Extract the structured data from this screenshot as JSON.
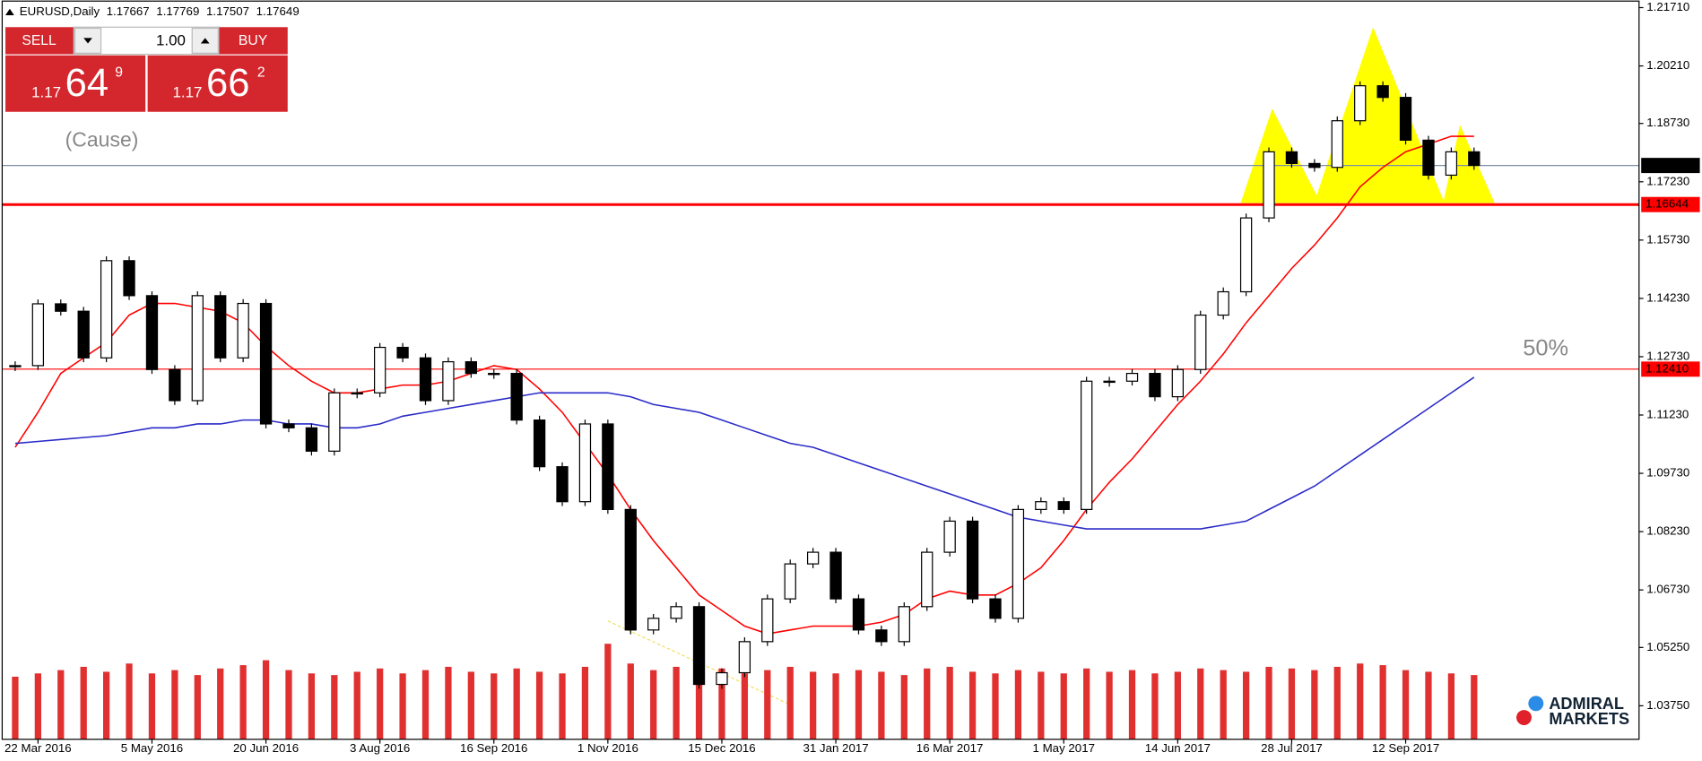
{
  "header": {
    "symbol": "EURUSD,Daily",
    "prices": [
      1.17667,
      1.17769,
      1.17507,
      1.17649
    ]
  },
  "trade_panel": {
    "sell_label": "SELL",
    "buy_label": "BUY",
    "lot": "1.00",
    "sell": {
      "prefix": "1.17",
      "pips": "64",
      "fraction": "9"
    },
    "buy": {
      "prefix": "1.17",
      "pips": "66",
      "fraction": "2"
    }
  },
  "annotations": {
    "cause": "(Cause)",
    "fifty": "50%"
  },
  "logo": {
    "line1": "ADMIRAL",
    "line2": "MARKETS"
  },
  "chart_data": {
    "type": "candlestick",
    "ylim": [
      1.02888,
      1.21906
    ],
    "yticks": [
      {
        "value": 1.2171,
        "label": "1.21710"
      },
      {
        "value": 1.2021,
        "label": "1.20210"
      },
      {
        "value": 1.1873,
        "label": "1.18730"
      },
      {
        "value": 1.1723,
        "label": "1.17230"
      },
      {
        "value": 1.1573,
        "label": "1.15730"
      },
      {
        "value": 1.1423,
        "label": "1.14230"
      },
      {
        "value": 1.1273,
        "label": "1.12730"
      },
      {
        "value": 1.1123,
        "label": "1.11230"
      },
      {
        "value": 1.0973,
        "label": "1.09730"
      },
      {
        "value": 1.0823,
        "label": "1.08230"
      },
      {
        "value": 1.0673,
        "label": "1.06730"
      },
      {
        "value": 1.0525,
        "label": "1.05250"
      },
      {
        "value": 1.0375,
        "label": "1.03750"
      }
    ],
    "categories": [
      null,
      "22 Mar 2016",
      null,
      null,
      null,
      null,
      "5 May 2016",
      null,
      null,
      null,
      null,
      "20 Jun 2016",
      null,
      null,
      null,
      null,
      "3 Aug 2016",
      null,
      null,
      null,
      null,
      "16 Sep 2016",
      null,
      null,
      null,
      null,
      "1 Nov 2016",
      null,
      null,
      null,
      null,
      "15 Dec 2016",
      null,
      null,
      null,
      null,
      "31 Jan 2017",
      null,
      null,
      null,
      null,
      "16 Mar 2017",
      null,
      null,
      null,
      null,
      "1 May 2017",
      null,
      null,
      null,
      null,
      "14 Jun 2017",
      null,
      null,
      null,
      null,
      "28 Jul 2017",
      null,
      null,
      null,
      null,
      "12 Sep 2017",
      null,
      null,
      null
    ],
    "values": [
      1.125,
      1.1409,
      1.139,
      1.127,
      1.152,
      1.143,
      1.124,
      1.116,
      1.143,
      1.127,
      1.141,
      1.11,
      1.109,
      1.103,
      1.118,
      1.118,
      1.1297,
      1.127,
      1.116,
      1.126,
      1.123,
      1.123,
      1.111,
      1.099,
      1.09,
      1.11,
      1.088,
      1.057,
      1.06,
      1.063,
      1.043,
      1.046,
      1.054,
      1.065,
      1.074,
      1.077,
      1.065,
      1.057,
      1.054,
      1.063,
      1.077,
      1.085,
      1.065,
      1.06,
      1.088,
      1.09,
      1.088,
      1.121,
      1.121,
      1.123,
      1.117,
      1.124,
      1.138,
      1.144,
      1.163,
      1.18,
      1.177,
      1.176,
      1.188,
      1.197,
      1.194,
      1.183,
      1.174,
      1.18,
      1.1765
    ],
    "moving_averages": [
      {
        "color": "#ff0000",
        "values": [
          1.104,
          1.113,
          1.123,
          1.127,
          1.131,
          1.138,
          1.141,
          1.141,
          1.14,
          1.139,
          1.136,
          1.13,
          1.125,
          1.121,
          1.118,
          1.118,
          1.119,
          1.12,
          1.12,
          1.121,
          1.123,
          1.125,
          1.124,
          1.119,
          1.113,
          1.105,
          1.097,
          1.088,
          1.08,
          1.073,
          1.066,
          1.062,
          1.058,
          1.056,
          1.057,
          1.058,
          1.058,
          1.058,
          1.059,
          1.061,
          1.065,
          1.067,
          1.066,
          1.066,
          1.069,
          1.073,
          1.08,
          1.088,
          1.095,
          1.101,
          1.108,
          1.115,
          1.121,
          1.128,
          1.136,
          1.143,
          1.15,
          1.156,
          1.163,
          1.171,
          1.176,
          1.18,
          1.182,
          1.184,
          1.184
        ]
      },
      {
        "color": "#2a2ac8",
        "values": [
          1.105,
          1.1055,
          1.106,
          1.1065,
          1.107,
          1.108,
          1.109,
          1.109,
          1.11,
          1.11,
          1.111,
          1.111,
          1.11,
          1.11,
          1.109,
          1.109,
          1.11,
          1.112,
          1.113,
          1.114,
          1.115,
          1.116,
          1.117,
          1.118,
          1.118,
          1.118,
          1.118,
          1.117,
          1.115,
          1.114,
          1.113,
          1.111,
          1.109,
          1.107,
          1.105,
          1.104,
          1.102,
          1.1,
          1.098,
          1.096,
          1.094,
          1.092,
          1.09,
          1.088,
          1.086,
          1.085,
          1.084,
          1.083,
          1.083,
          1.083,
          1.083,
          1.083,
          1.083,
          1.084,
          1.085,
          1.088,
          1.091,
          1.094,
          1.098,
          1.102,
          1.106,
          1.11,
          1.114,
          1.118,
          1.122
        ]
      }
    ],
    "volume": {
      "color": "#e03030",
      "values": [
        38,
        40,
        42,
        44,
        41,
        46,
        40,
        42,
        39,
        43,
        45,
        48,
        42,
        40,
        39,
        41,
        43,
        40,
        42,
        44,
        41,
        40,
        43,
        41,
        40,
        44,
        58,
        46,
        42,
        44,
        45,
        43,
        40,
        42,
        44,
        41,
        40,
        42,
        41,
        39,
        43,
        44,
        41,
        40,
        42,
        41,
        40,
        43,
        41,
        42,
        40,
        41,
        43,
        42,
        41,
        44,
        43,
        42,
        44,
        46,
        45,
        42,
        41,
        40,
        39
      ]
    },
    "levels": [
      {
        "value": 1.17649,
        "color": "#7f8fa6"
      },
      {
        "value": 1.16644,
        "label": "1.16644",
        "color": "#ff0000"
      },
      {
        "value": 1.1241,
        "label": "1.12410",
        "color": "#ff0000"
      }
    ]
  }
}
